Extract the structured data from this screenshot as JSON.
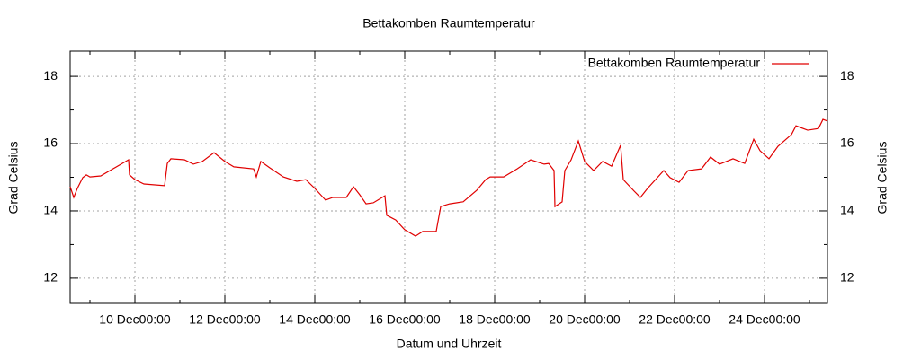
{
  "chart_data": {
    "type": "line",
    "title": "Bettakomben Raumtemperatur",
    "xlabel": "Datum und Uhrzeit",
    "ylabel": "Grad Celsius",
    "y2label": "Grad Celsius",
    "legend": "top-right",
    "grid": true,
    "xlim": [
      8.56,
      25.4
    ],
    "ylim": [
      11.25,
      18.75
    ],
    "xticks": [
      {
        "value": 10,
        "label": "10 Dec00:00"
      },
      {
        "value": 12,
        "label": "12 Dec00:00"
      },
      {
        "value": 14,
        "label": "14 Dec00:00"
      },
      {
        "value": 16,
        "label": "16 Dec00:00"
      },
      {
        "value": 18,
        "label": "18 Dec00:00"
      },
      {
        "value": 20,
        "label": "20 Dec00:00"
      },
      {
        "value": 22,
        "label": "22 Dec00:00"
      },
      {
        "value": 24,
        "label": "24 Dec00:00"
      }
    ],
    "xminorticks": [
      9,
      11,
      13,
      15,
      17,
      19,
      21,
      23,
      25
    ],
    "yticks": [
      12,
      14,
      16,
      18
    ],
    "yminorticks": [
      13,
      15,
      17
    ],
    "x": [
      8.56,
      8.64,
      8.72,
      8.84,
      8.92,
      9.0,
      9.24,
      9.86,
      9.88,
      10.0,
      10.2,
      10.66,
      10.72,
      10.8,
      11.1,
      11.3,
      11.5,
      11.76,
      12.0,
      12.2,
      12.64,
      12.7,
      12.8,
      13.0,
      13.3,
      13.6,
      13.8,
      14.0,
      14.24,
      14.4,
      14.7,
      14.86,
      15.0,
      15.14,
      15.3,
      15.56,
      15.6,
      15.8,
      16.0,
      16.24,
      16.4,
      16.7,
      16.8,
      17.0,
      17.3,
      17.6,
      17.8,
      17.9,
      18.2,
      18.5,
      18.8,
      19.1,
      19.2,
      19.32,
      19.34,
      19.5,
      19.56,
      19.7,
      19.86,
      20.0,
      20.2,
      20.4,
      20.6,
      20.8,
      20.86,
      21.1,
      21.24,
      21.4,
      21.76,
      21.9,
      22.1,
      22.3,
      22.6,
      22.8,
      23.0,
      23.3,
      23.56,
      23.76,
      23.9,
      24.1,
      24.3,
      24.6,
      24.7,
      24.96,
      25.2,
      25.3,
      25.4
    ],
    "series": [
      {
        "name": "Bettakomben Raumtemperatur",
        "color": "#e00000",
        "values": [
          14.72,
          14.4,
          14.67,
          14.99,
          15.07,
          15.01,
          15.04,
          15.52,
          15.07,
          14.93,
          14.8,
          14.75,
          15.41,
          15.55,
          15.52,
          15.39,
          15.47,
          15.73,
          15.47,
          15.31,
          15.25,
          15.01,
          15.47,
          15.28,
          15.01,
          14.88,
          14.93,
          14.67,
          14.32,
          14.4,
          14.4,
          14.72,
          14.48,
          14.21,
          14.24,
          14.45,
          13.87,
          13.73,
          13.44,
          13.25,
          13.39,
          13.39,
          14.13,
          14.21,
          14.27,
          14.61,
          14.93,
          15.01,
          15.01,
          15.25,
          15.52,
          15.39,
          15.41,
          15.2,
          14.13,
          14.27,
          15.2,
          15.52,
          16.08,
          15.47,
          15.2,
          15.47,
          15.33,
          15.95,
          14.93,
          14.59,
          14.4,
          14.67,
          15.2,
          14.99,
          14.85,
          15.2,
          15.25,
          15.6,
          15.39,
          15.55,
          15.41,
          16.13,
          15.79,
          15.55,
          15.92,
          16.27,
          16.53,
          16.4,
          16.45,
          16.72,
          16.67
        ]
      }
    ]
  }
}
